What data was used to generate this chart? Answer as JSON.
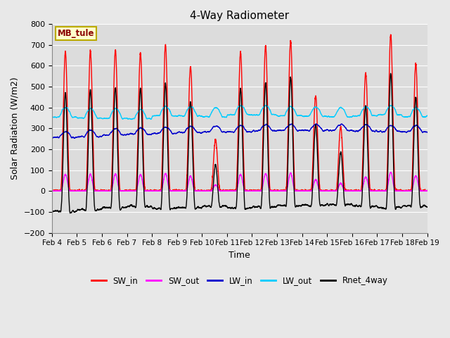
{
  "title": "4-Way Radiometer",
  "xlabel": "Time",
  "ylabel": "Solar Radiation (W/m2)",
  "ylim": [
    -200,
    800
  ],
  "yticks": [
    -200,
    -100,
    0,
    100,
    200,
    300,
    400,
    500,
    600,
    700,
    800
  ],
  "station_label": "MB_tule",
  "fig_facecolor": "#e8e8e8",
  "ax_facecolor": "#dcdcdc",
  "grid_color": "#ffffff",
  "line_colors": {
    "SW_in": "#ff0000",
    "SW_out": "#ff00ff",
    "LW_in": "#0000cc",
    "LW_out": "#00ccff",
    "Rnet_4way": "#000000"
  },
  "line_width": 1.0,
  "x_start": 4,
  "x_end": 19,
  "x_ticks": [
    4,
    5,
    6,
    7,
    8,
    9,
    10,
    11,
    12,
    13,
    14,
    15,
    16,
    17,
    18,
    19
  ],
  "x_tick_labels": [
    "Feb 4",
    "Feb 5",
    "Feb 6",
    "Feb 7",
    "Feb 8",
    "Feb 9",
    "Feb 10",
    "Feb 11",
    "Feb 12",
    "Feb 13",
    "Feb 14",
    "Feb 15",
    "Feb 16",
    "Feb 17",
    "Feb 18",
    "Feb 19"
  ],
  "n_days": 15,
  "pts_per_day": 288,
  "sw_in_peaks": [
    665,
    670,
    675,
    660,
    700,
    595,
    245,
    665,
    695,
    720,
    455,
    305,
    565,
    750,
    610
  ],
  "lw_in_night": [
    255,
    260,
    268,
    272,
    276,
    280,
    282,
    284,
    288,
    290,
    290,
    290,
    288,
    285,
    283
  ],
  "lw_out_base": [
    355,
    350,
    348,
    345,
    360,
    360,
    355,
    365,
    365,
    360,
    358,
    355,
    360,
    365,
    355
  ]
}
